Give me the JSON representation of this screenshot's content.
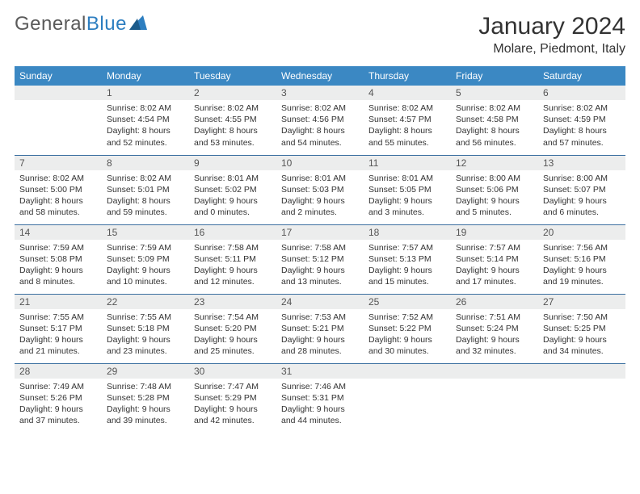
{
  "logo": {
    "text1": "General",
    "text2": "Blue"
  },
  "title": "January 2024",
  "location": "Molare, Piedmont, Italy",
  "colors": {
    "header_bg": "#3b88c3",
    "header_text": "#ffffff",
    "daynum_bg": "#eceded",
    "row_border": "#3b6fa0",
    "logo_gray": "#5a5a5a",
    "logo_blue": "#2d7ec0"
  },
  "day_headers": [
    "Sunday",
    "Monday",
    "Tuesday",
    "Wednesday",
    "Thursday",
    "Friday",
    "Saturday"
  ],
  "weeks": [
    [
      {
        "n": "",
        "sr": "",
        "ss": "",
        "dl": ""
      },
      {
        "n": "1",
        "sr": "Sunrise: 8:02 AM",
        "ss": "Sunset: 4:54 PM",
        "dl": "Daylight: 8 hours and 52 minutes."
      },
      {
        "n": "2",
        "sr": "Sunrise: 8:02 AM",
        "ss": "Sunset: 4:55 PM",
        "dl": "Daylight: 8 hours and 53 minutes."
      },
      {
        "n": "3",
        "sr": "Sunrise: 8:02 AM",
        "ss": "Sunset: 4:56 PM",
        "dl": "Daylight: 8 hours and 54 minutes."
      },
      {
        "n": "4",
        "sr": "Sunrise: 8:02 AM",
        "ss": "Sunset: 4:57 PM",
        "dl": "Daylight: 8 hours and 55 minutes."
      },
      {
        "n": "5",
        "sr": "Sunrise: 8:02 AM",
        "ss": "Sunset: 4:58 PM",
        "dl": "Daylight: 8 hours and 56 minutes."
      },
      {
        "n": "6",
        "sr": "Sunrise: 8:02 AM",
        "ss": "Sunset: 4:59 PM",
        "dl": "Daylight: 8 hours and 57 minutes."
      }
    ],
    [
      {
        "n": "7",
        "sr": "Sunrise: 8:02 AM",
        "ss": "Sunset: 5:00 PM",
        "dl": "Daylight: 8 hours and 58 minutes."
      },
      {
        "n": "8",
        "sr": "Sunrise: 8:02 AM",
        "ss": "Sunset: 5:01 PM",
        "dl": "Daylight: 8 hours and 59 minutes."
      },
      {
        "n": "9",
        "sr": "Sunrise: 8:01 AM",
        "ss": "Sunset: 5:02 PM",
        "dl": "Daylight: 9 hours and 0 minutes."
      },
      {
        "n": "10",
        "sr": "Sunrise: 8:01 AM",
        "ss": "Sunset: 5:03 PM",
        "dl": "Daylight: 9 hours and 2 minutes."
      },
      {
        "n": "11",
        "sr": "Sunrise: 8:01 AM",
        "ss": "Sunset: 5:05 PM",
        "dl": "Daylight: 9 hours and 3 minutes."
      },
      {
        "n": "12",
        "sr": "Sunrise: 8:00 AM",
        "ss": "Sunset: 5:06 PM",
        "dl": "Daylight: 9 hours and 5 minutes."
      },
      {
        "n": "13",
        "sr": "Sunrise: 8:00 AM",
        "ss": "Sunset: 5:07 PM",
        "dl": "Daylight: 9 hours and 6 minutes."
      }
    ],
    [
      {
        "n": "14",
        "sr": "Sunrise: 7:59 AM",
        "ss": "Sunset: 5:08 PM",
        "dl": "Daylight: 9 hours and 8 minutes."
      },
      {
        "n": "15",
        "sr": "Sunrise: 7:59 AM",
        "ss": "Sunset: 5:09 PM",
        "dl": "Daylight: 9 hours and 10 minutes."
      },
      {
        "n": "16",
        "sr": "Sunrise: 7:58 AM",
        "ss": "Sunset: 5:11 PM",
        "dl": "Daylight: 9 hours and 12 minutes."
      },
      {
        "n": "17",
        "sr": "Sunrise: 7:58 AM",
        "ss": "Sunset: 5:12 PM",
        "dl": "Daylight: 9 hours and 13 minutes."
      },
      {
        "n": "18",
        "sr": "Sunrise: 7:57 AM",
        "ss": "Sunset: 5:13 PM",
        "dl": "Daylight: 9 hours and 15 minutes."
      },
      {
        "n": "19",
        "sr": "Sunrise: 7:57 AM",
        "ss": "Sunset: 5:14 PM",
        "dl": "Daylight: 9 hours and 17 minutes."
      },
      {
        "n": "20",
        "sr": "Sunrise: 7:56 AM",
        "ss": "Sunset: 5:16 PM",
        "dl": "Daylight: 9 hours and 19 minutes."
      }
    ],
    [
      {
        "n": "21",
        "sr": "Sunrise: 7:55 AM",
        "ss": "Sunset: 5:17 PM",
        "dl": "Daylight: 9 hours and 21 minutes."
      },
      {
        "n": "22",
        "sr": "Sunrise: 7:55 AM",
        "ss": "Sunset: 5:18 PM",
        "dl": "Daylight: 9 hours and 23 minutes."
      },
      {
        "n": "23",
        "sr": "Sunrise: 7:54 AM",
        "ss": "Sunset: 5:20 PM",
        "dl": "Daylight: 9 hours and 25 minutes."
      },
      {
        "n": "24",
        "sr": "Sunrise: 7:53 AM",
        "ss": "Sunset: 5:21 PM",
        "dl": "Daylight: 9 hours and 28 minutes."
      },
      {
        "n": "25",
        "sr": "Sunrise: 7:52 AM",
        "ss": "Sunset: 5:22 PM",
        "dl": "Daylight: 9 hours and 30 minutes."
      },
      {
        "n": "26",
        "sr": "Sunrise: 7:51 AM",
        "ss": "Sunset: 5:24 PM",
        "dl": "Daylight: 9 hours and 32 minutes."
      },
      {
        "n": "27",
        "sr": "Sunrise: 7:50 AM",
        "ss": "Sunset: 5:25 PM",
        "dl": "Daylight: 9 hours and 34 minutes."
      }
    ],
    [
      {
        "n": "28",
        "sr": "Sunrise: 7:49 AM",
        "ss": "Sunset: 5:26 PM",
        "dl": "Daylight: 9 hours and 37 minutes."
      },
      {
        "n": "29",
        "sr": "Sunrise: 7:48 AM",
        "ss": "Sunset: 5:28 PM",
        "dl": "Daylight: 9 hours and 39 minutes."
      },
      {
        "n": "30",
        "sr": "Sunrise: 7:47 AM",
        "ss": "Sunset: 5:29 PM",
        "dl": "Daylight: 9 hours and 42 minutes."
      },
      {
        "n": "31",
        "sr": "Sunrise: 7:46 AM",
        "ss": "Sunset: 5:31 PM",
        "dl": "Daylight: 9 hours and 44 minutes."
      },
      {
        "n": "",
        "sr": "",
        "ss": "",
        "dl": ""
      },
      {
        "n": "",
        "sr": "",
        "ss": "",
        "dl": ""
      },
      {
        "n": "",
        "sr": "",
        "ss": "",
        "dl": ""
      }
    ]
  ]
}
